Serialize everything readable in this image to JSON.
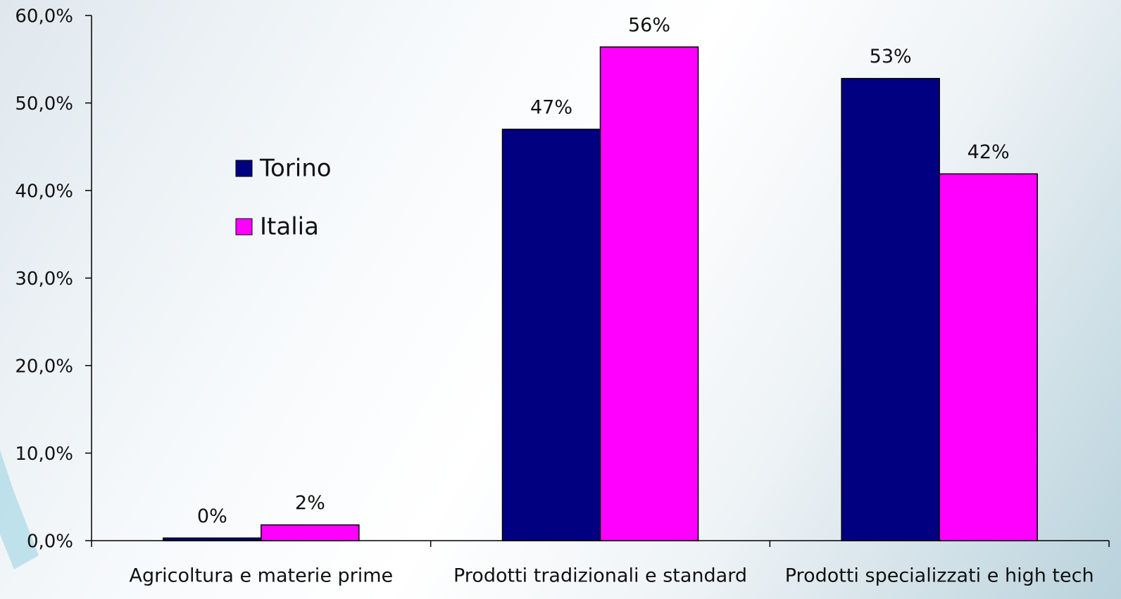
{
  "chart_data": {
    "type": "bar",
    "categories": [
      "Agricoltura e materie prime",
      "Prodotti tradizionali e standard",
      "Prodotti specializzati e high tech"
    ],
    "series": [
      {
        "name": "Torino",
        "color": "#000080",
        "values": [
          0.3,
          47.0,
          52.8
        ],
        "value_labels": [
          "0%",
          "47%",
          "53%"
        ]
      },
      {
        "name": "Italia",
        "color": "#ff00ff",
        "values": [
          1.8,
          56.4,
          41.9
        ],
        "value_labels": [
          "2%",
          "56%",
          "42%"
        ]
      }
    ],
    "ylim": [
      0,
      60
    ],
    "yticks": [
      {
        "value": 0,
        "label": "0,0%"
      },
      {
        "value": 10,
        "label": "10,0%"
      },
      {
        "value": 20,
        "label": "20,0%"
      },
      {
        "value": 30,
        "label": "30,0%"
      },
      {
        "value": 40,
        "label": "40,0%"
      },
      {
        "value": 50,
        "label": "50,0%"
      },
      {
        "value": 60,
        "label": "60,0%"
      }
    ]
  }
}
